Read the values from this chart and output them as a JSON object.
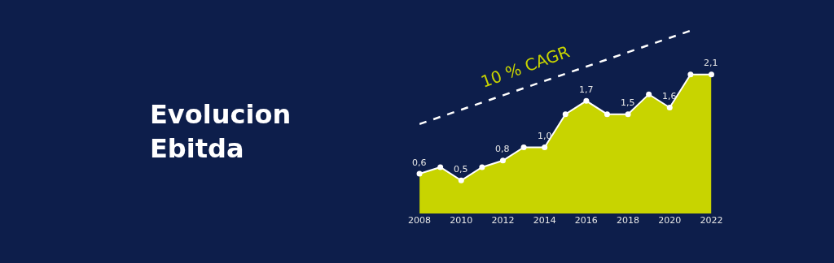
{
  "chart_data": {
    "type": "area",
    "title": "Evolucion\nEbitda",
    "x": [
      2008,
      2009,
      2010,
      2011,
      2012,
      2013,
      2014,
      2015,
      2016,
      2017,
      2018,
      2019,
      2020,
      2021,
      2022
    ],
    "series": [
      {
        "color": "#c8d400",
        "values": [
          0.6,
          0.7,
          0.5,
          0.7,
          0.8,
          1.0,
          1.0,
          1.5,
          1.7,
          1.5,
          1.5,
          1.8,
          1.6,
          2.1,
          2.1
        ],
        "value_labels": [
          "0,6",
          null,
          "0,5",
          null,
          "0,8",
          null,
          "1,0",
          null,
          "1,7",
          null,
          "1,5",
          null,
          "1,6",
          null,
          "2,1"
        ]
      },
      {
        "type": "line",
        "color": "#ffffff",
        "line_style": "dashed",
        "marker": "none",
        "x": [
          2008,
          2021
        ],
        "values": [
          1.35,
          2.76
        ]
      }
    ],
    "annotations": [
      "10 % CAGR"
    ],
    "xlim": [
      2008,
      2022
    ],
    "xticks": [
      2008,
      2010,
      2012,
      2014,
      2016,
      2018,
      2020,
      2022
    ],
    "marker": "circle"
  }
}
